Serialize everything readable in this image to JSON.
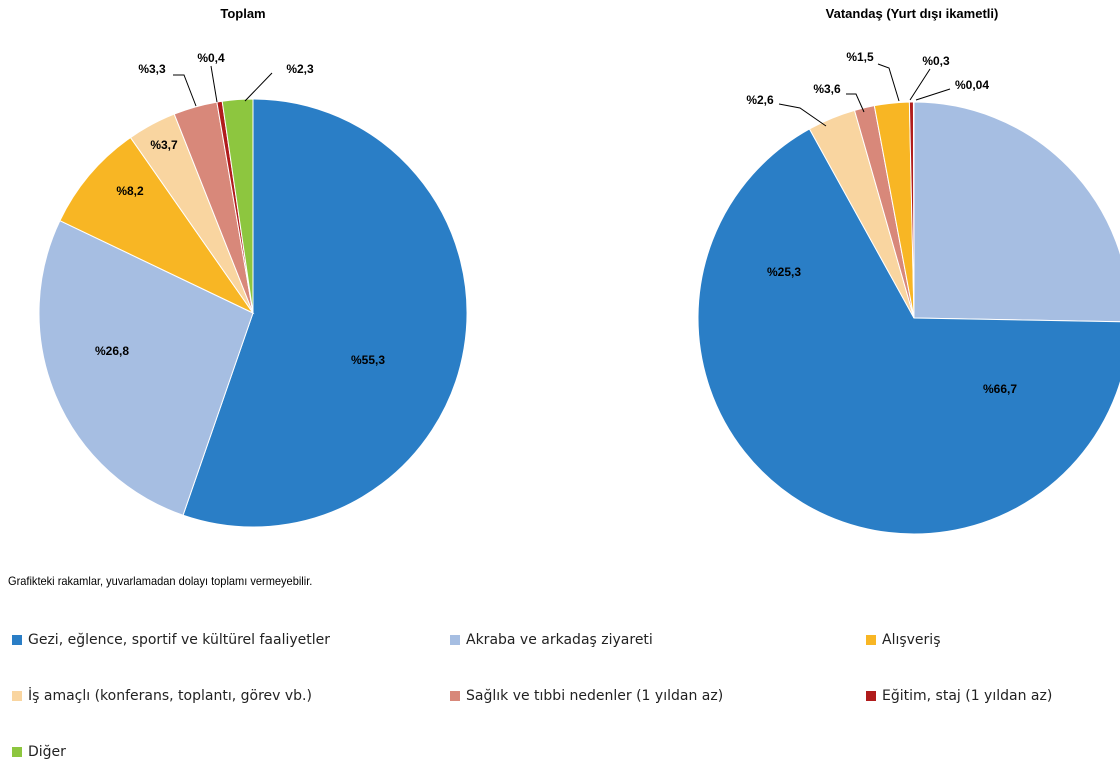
{
  "categories": [
    "Gezi, eğlence, sportif ve kültürel faaliyetler",
    "Akraba ve arkadaş ziyareti",
    "Alışveriş",
    "İş amaçlı (konferans, toplantı, görev vb.)",
    "Sağlık ve tıbbi nedenler (1 yıldan az)",
    "Eğitim, staj (1 yıldan az)",
    "Diğer"
  ],
  "colors": [
    "#2a7ec6",
    "#a6bee2",
    "#f8b624",
    "#f9d5a0",
    "#d8887a",
    "#b01c1c",
    "#8dc63f"
  ],
  "note": "Grafikteki rakamlar, yuvarlamadan dolayı toplamı vermeyebilir.",
  "chart_data": [
    {
      "type": "pie",
      "title": "Toplam",
      "values": [
        55.3,
        26.8,
        8.2,
        3.7,
        3.3,
        0.4,
        2.3
      ],
      "labels": [
        "%55,3",
        "%26,8",
        "%8,2",
        "%3,7",
        "%3,3",
        "%0,4",
        "%2,3"
      ]
    },
    {
      "type": "pie",
      "title": "Vatandaş (Yurt dışı ikametli)",
      "values": [
        66.7,
        25.3,
        2.6,
        3.6,
        1.5,
        0.3,
        0.04
      ],
      "order": [
        1,
        0,
        3,
        4,
        2,
        5,
        6
      ],
      "labels": [
        "%66,7",
        "%25,3",
        "%2,6",
        "%3,6",
        "%1,5",
        "%0,3",
        "%0,04"
      ]
    }
  ]
}
